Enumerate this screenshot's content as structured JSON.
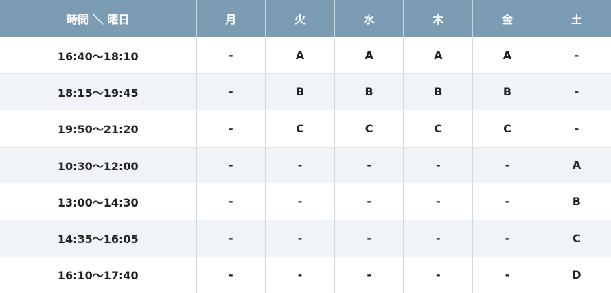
{
  "table": {
    "header": [
      "時間 ＼ 曜日",
      "月",
      "火",
      "水",
      "木",
      "金",
      "土"
    ],
    "rows": [
      [
        "16:40〜18:10",
        "-",
        "A",
        "A",
        "A",
        "A",
        "-"
      ],
      [
        "18:15〜19:45",
        "-",
        "B",
        "B",
        "B",
        "B",
        "-"
      ],
      [
        "19:50〜21:20",
        "-",
        "C",
        "C",
        "C",
        "C",
        "-"
      ],
      [
        "10:30〜12:00",
        "-",
        "-",
        "-",
        "-",
        "-",
        "A"
      ],
      [
        "13:00〜14:30",
        "-",
        "-",
        "-",
        "-",
        "-",
        "B"
      ],
      [
        "14:35〜16:05",
        "-",
        "-",
        "-",
        "-",
        "-",
        "C"
      ],
      [
        "16:10〜17:40",
        "-",
        "-",
        "-",
        "-",
        "-",
        "D"
      ]
    ]
  },
  "colors": {
    "header_bg": "#7b9cb2",
    "alt_row_bg": "#f0f3f7"
  }
}
